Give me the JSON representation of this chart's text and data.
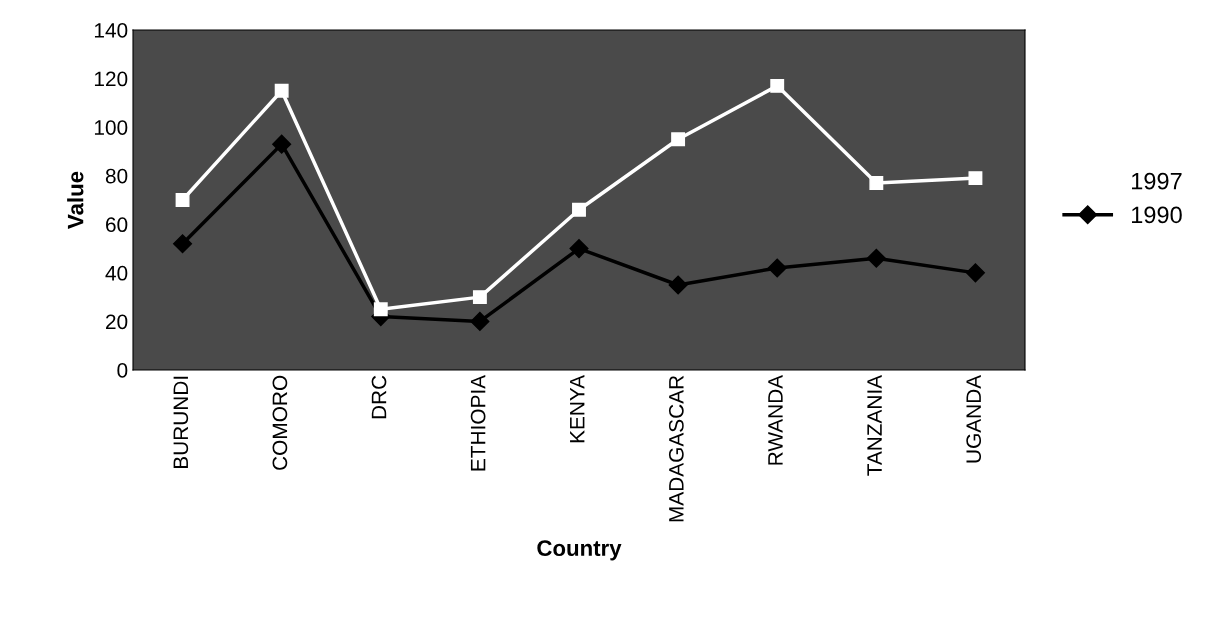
{
  "chart_data": {
    "type": "line",
    "xlabel": "Country",
    "ylabel": "Value",
    "categories": [
      "BURUNDI",
      "COMORO",
      "DRC",
      "ETHIOPIA",
      "KENYA",
      "MADAGASCAR",
      "RWANDA",
      "TANZANIA",
      "UGANDA"
    ],
    "series": [
      {
        "name": "1997",
        "color": "#ffffff",
        "marker": "square",
        "values": [
          70,
          115,
          25,
          30,
          66,
          95,
          117,
          77,
          79
        ]
      },
      {
        "name": "1990",
        "color": "#000000",
        "marker": "diamond",
        "values": [
          52,
          93,
          22,
          20,
          50,
          35,
          42,
          46,
          40
        ]
      }
    ],
    "ylim": [
      0,
      140
    ],
    "yticks": [
      0,
      20,
      40,
      60,
      80,
      100,
      120,
      140
    ],
    "grid": false,
    "legend": "right"
  }
}
